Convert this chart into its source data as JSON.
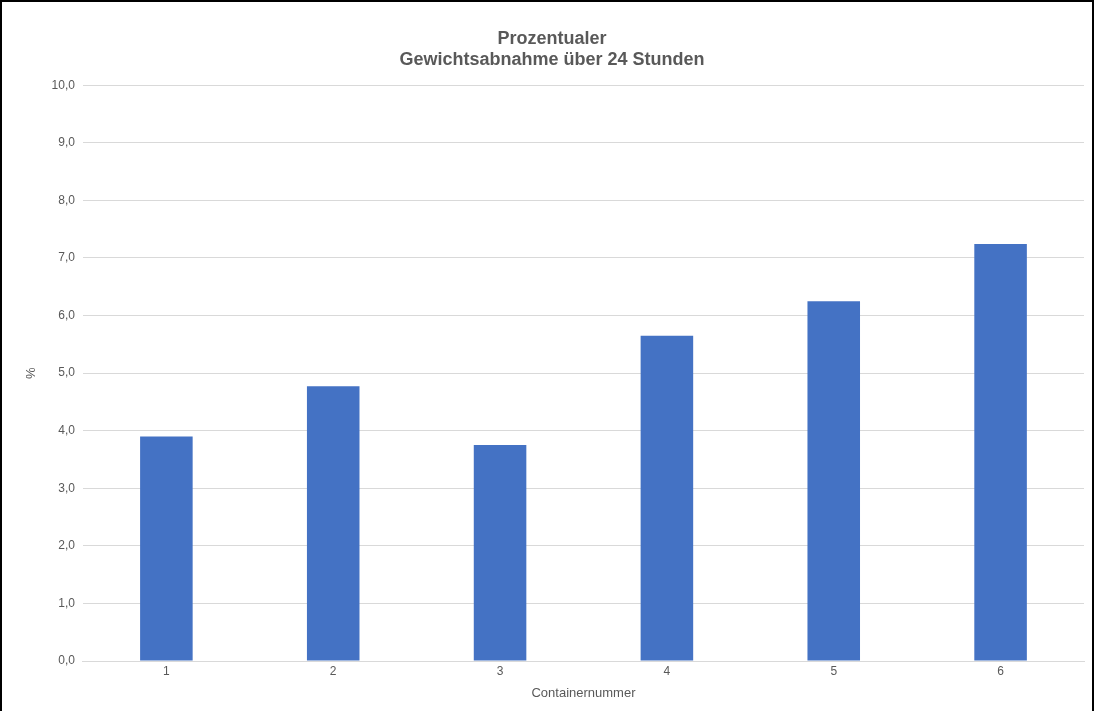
{
  "chart_data": {
    "type": "bar",
    "title": "Prozentualer\nGewichtsabnahme über 24 Stunden",
    "xlabel": "Containernummer",
    "ylabel": "%",
    "categories": [
      "1",
      "2",
      "3",
      "4",
      "5",
      "6"
    ],
    "values": [
      3.9,
      4.77,
      3.75,
      5.65,
      6.25,
      7.24
    ],
    "color": "#4472c4",
    "ylim": [
      0,
      10
    ],
    "yticks": [
      {
        "value": 0,
        "label": "0,0"
      },
      {
        "value": 1,
        "label": "1,0"
      },
      {
        "value": 2,
        "label": "2,0"
      },
      {
        "value": 3,
        "label": "3,0"
      },
      {
        "value": 4,
        "label": "4,0"
      },
      {
        "value": 5,
        "label": "5,0"
      },
      {
        "value": 6,
        "label": "6,0"
      },
      {
        "value": 7,
        "label": "7,0"
      },
      {
        "value": 8,
        "label": "8,0"
      },
      {
        "value": 9,
        "label": "9,0"
      },
      {
        "value": 10,
        "label": "10,0"
      }
    ],
    "grid": "y",
    "legend": false
  }
}
